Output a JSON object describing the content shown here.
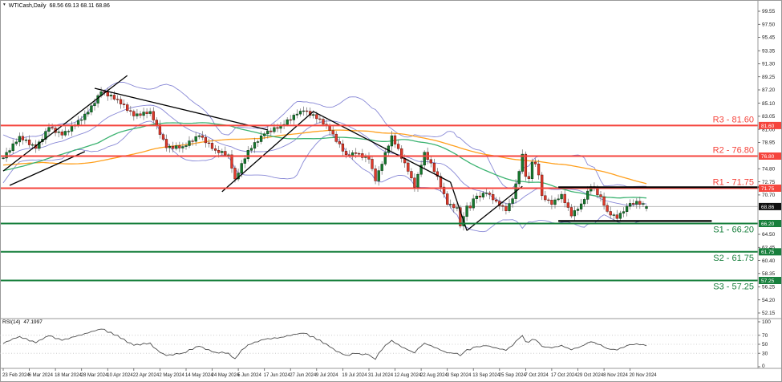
{
  "window": {
    "symbol_label": "WTICash,Daily",
    "ohlc_label": "68.56 69.13 68.11 68.86",
    "dropdown_icon": "▾"
  },
  "chart_data": {
    "type": "candlestick",
    "symbol": "WTICash",
    "timeframe": "Daily",
    "title": "WTICash,Daily 68.56 69.13 68.11 68.86",
    "ylim": [
      52.15,
      99.55
    ],
    "price_ticks": [
      99.55,
      97.5,
      95.45,
      93.35,
      91.3,
      89.25,
      87.2,
      85.1,
      83.05,
      81.0,
      78.95,
      74.8,
      72.75,
      70.7,
      64.5,
      62.45,
      60.4,
      58.35,
      56.25,
      54.2,
      52.15
    ],
    "x_labels": [
      "23 Feb 2024",
      "6 Mar 2024",
      "18 Mar 2024",
      "28 Mar 2024",
      "10 Apr 2024",
      "22 Apr 2024",
      "2 May 2024",
      "14 May 2024",
      "24 May 2024",
      "5 Jun 2024",
      "17 Jun 2024",
      "27 Jun 2024",
      "9 Jul 2024",
      "19 Jul 2024",
      "31 Jul 2024",
      "12 Aug 2024",
      "22 Aug 2024",
      "3 Sep 2024",
      "13 Sep 2024",
      "25 Sep 2024",
      "7 Oct 2024",
      "17 Oct 2024",
      "29 Oct 2024",
      "8 Nov 2024",
      "20 Nov 2024"
    ],
    "bars_per_label": 8,
    "pre_closes": [
      85.0,
      84.6,
      84.2,
      83.8,
      83.4,
      83.0,
      82.5,
      82.0,
      81.5,
      81.0,
      80.4,
      79.8,
      79.2,
      78.6,
      78.0,
      77.4,
      76.8,
      77.2,
      76.6,
      76.0,
      75.4,
      74.9,
      75.3,
      74.7,
      74.2,
      73.6,
      73.0,
      72.4,
      71.8,
      71.2,
      70.6,
      70.0,
      69.4,
      69.8,
      70.2,
      70.6,
      71.0,
      71.4,
      71.8,
      72.2,
      72.6,
      73.0,
      73.4,
      73.8,
      72.0,
      70.5,
      70.8,
      71.1,
      71.4,
      71.7,
      72.0,
      72.3,
      72.6,
      72.9,
      73.2,
      72.7,
      72.4,
      72.9,
      73.4,
      73.9,
      74.4,
      74.9,
      75.4,
      75.9,
      76.4,
      76.9,
      77.4,
      73.8,
      72.3,
      72.8,
      73.3,
      73.8,
      74.3,
      76.3,
      76.8,
      77.3,
      77.8,
      78.3,
      77.8,
      78.0,
      77.4,
      76.8,
      77.2,
      77.6,
      78.0,
      78.4,
      76.5
    ],
    "closes": [
      76.5,
      77.38,
      77.66,
      78.74,
      79.02,
      79.9,
      79.32,
      79.34,
      78.56,
      78.58,
      78.0,
      79.03,
      79.45,
      80.68,
      81.3,
      81.2,
      80.5,
      80.6,
      80.1,
      80.7,
      80.7,
      81.5,
      81.7,
      82.4,
      82.5,
      83.4,
      83.7,
      84.7,
      85.1,
      86.3,
      86.9,
      86.86,
      86.22,
      86.38,
      85.74,
      85.7,
      84.98,
      84.86,
      83.94,
      83.82,
      83.1,
      83.44,
      83.18,
      83.72,
      83.46,
      83.8,
      82.46,
      81.72,
      80.18,
      79.44,
      78.1,
      78.34,
      77.98,
      78.42,
      78.06,
      78.3,
      78.44,
      79.18,
      79.12,
      79.86,
      80.0,
      79.74,
      78.88,
      78.82,
      77.96,
      77.7,
      77.32,
      77.55,
      76.97,
      77.0,
      74.9,
      73.2,
      74.13,
      75.65,
      76.38,
      77.7,
      78.02,
      78.94,
      79.06,
      79.98,
      80.3,
      80.76,
      80.62,
      81.28,
      81.14,
      81.6,
      81.76,
      82.52,
      82.48,
      83.24,
      83.4,
      83.85,
      83.9,
      83.84,
      83.18,
      83.32,
      82.66,
      82.6,
      81.8,
      81.6,
      80.8,
      80.24,
      79.08,
      78.72,
      77.56,
      77.0,
      76.87,
      77.33,
      77.2,
      77.18,
      76.55,
      76.73,
      76.3,
      74.8,
      72.9,
      74.52,
      75.54,
      77.36,
      78.38,
      80.0,
      78.68,
      77.96,
      76.44,
      75.72,
      74.4,
      73.35,
      71.9,
      73.93,
      75.37,
      77.4,
      76.25,
      75.7,
      74.35,
      73.6,
      71.93,
      70.87,
      69.2,
      69.23,
      68.67,
      68.7,
      65.8,
      67.31,
      68.97,
      68.65,
      70.09,
      70.53,
      70.35,
      70.98,
      71.0,
      70.77,
      69.93,
      69.7,
      69.0,
      68.9,
      68.2,
      69.35,
      70.1,
      72.45,
      74.4,
      77.1,
      73.6,
      73.24,
      75.85,
      75.56,
      73.83,
      70.58,
      69.93,
      69.87,
      69.2,
      69.93,
      70.07,
      70.8,
      69.47,
      68.73,
      67.4,
      68.23,
      68.47,
      69.3,
      70.0,
      71.3,
      72.0,
      71.67,
      70.73,
      70.4,
      69.05,
      68.1,
      67.53,
      67.57,
      67.0,
      67.83,
      68.07,
      68.9,
      69.37,
      69.23,
      69.7,
      69.22,
      69.34,
      68.86
    ],
    "last_candle": {
      "open": 68.56,
      "high": 69.13,
      "low": 68.11,
      "close": 68.86
    },
    "current_price": 68.86,
    "overlays": {
      "bollinger": {
        "period": 20,
        "deviation": 2
      },
      "sma_fast": {
        "period": 50
      },
      "sma_slow": {
        "period": 100
      }
    },
    "sr_levels": [
      {
        "label": "R3 - 81.60",
        "value": 81.6,
        "kind": "resistance"
      },
      {
        "label": "R2 - 76.80",
        "value": 76.8,
        "kind": "resistance"
      },
      {
        "label": "R1 - 71.75",
        "value": 71.75,
        "kind": "resistance"
      },
      {
        "label": "S1 - 66.20",
        "value": 66.2,
        "kind": "support"
      },
      {
        "label": "S2 - 61.75",
        "value": 61.75,
        "kind": "support"
      },
      {
        "label": "S3 - 57.25",
        "value": 57.25,
        "kind": "support"
      }
    ],
    "trendlines": [
      {
        "from": [
          0,
          74.45
        ],
        "to": [
          38,
          89.45
        ]
      },
      {
        "from": [
          2,
          72.2
        ],
        "to": [
          25,
          77.5
        ]
      },
      {
        "from": [
          28,
          87.45
        ],
        "to": [
          81,
          80.9
        ]
      },
      {
        "from": [
          67,
          71.2
        ],
        "to": [
          95,
          83.8
        ]
      },
      {
        "from": [
          95,
          83.8
        ],
        "to": [
          137,
          72.7
        ]
      },
      {
        "from": [
          137,
          72.7
        ],
        "to": [
          142,
          65.1
        ]
      },
      {
        "from": [
          142,
          65.1
        ],
        "to": [
          159,
          72.05
        ]
      }
    ],
    "hlines": [
      {
        "price": 71.9,
        "from": 170,
        "to": 234
      },
      {
        "price": 66.6,
        "from": 170,
        "to": 217
      }
    ]
  },
  "rsi": {
    "label": "RSI(14)",
    "value": "47.1997",
    "period": 14,
    "axis_ticks": [
      100,
      70,
      50,
      30,
      0
    ],
    "level_lines": [
      70,
      50,
      30
    ]
  },
  "colors": {
    "bull": "#167a2e",
    "bull_edge": "#06330f",
    "bear": "#df3a2b",
    "bear_edge": "#5d120c",
    "wick": "#6b6b6b",
    "bollinger": "#8888d6",
    "sma_fast": "#3cb371",
    "sma_slow": "#ffa01e",
    "resistance": "#f5453d",
    "support": "#177f3c",
    "trendline": "#000000",
    "current_price_line": "#bcbcbc",
    "badge_current_bg": "#101010",
    "axis_text": "#1a1a1a",
    "rsi_line": "#4d4d4d",
    "rsi_grid": "#c4c4c4",
    "frame": "#9a9a9a"
  }
}
